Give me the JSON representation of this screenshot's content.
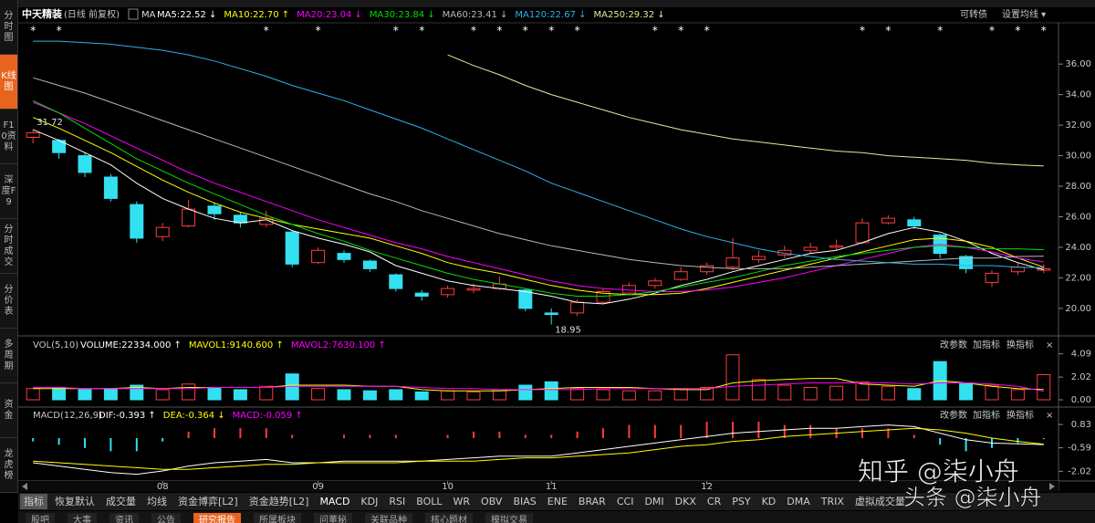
{
  "app": {
    "sidebar": [
      "分时图",
      "K线图",
      "F10资料",
      "深度F9",
      "分时成交",
      "分价表",
      "多周期",
      "资金",
      "龙虎榜"
    ],
    "sidebar_active": 1,
    "top_right": [
      "可转债",
      "设置均线 ▾"
    ],
    "ma_button": "MA",
    "panel_tools": [
      "改参数",
      "加指标",
      "换指标",
      "×"
    ],
    "tabs": [
      "指标",
      "恢复默认",
      "成交量",
      "均线",
      "资金博弈[L2]",
      "资金趋势[L2]",
      "MACD",
      "KDJ",
      "RSI",
      "BOLL",
      "WR",
      "OBV",
      "BIAS",
      "ENE",
      "BRAR",
      "CCI",
      "DMI",
      "DKX",
      "CR",
      "PSY",
      "KD",
      "DMA",
      "TRIX",
      "虚拟成交量"
    ],
    "tabs_active": 0,
    "bottom_tabs": [
      "股吧",
      "大事",
      "资讯",
      "公告",
      "研究报告",
      "所属板块",
      "问董秘",
      "关联品种",
      "核心题材",
      "模拟交易"
    ],
    "bottom_tabs_active": 4,
    "watermarks": [
      "知乎 @柒小舟",
      "头条 @柒小舟"
    ]
  },
  "chart_data": [
    {
      "type": "candlestick",
      "title": "中天精装",
      "subtitle": "(日线 前复权)",
      "categories": [
        null,
        null,
        null,
        null,
        null,
        "08",
        null,
        null,
        null,
        null,
        null,
        "09",
        null,
        null,
        null,
        null,
        "10",
        null,
        null,
        null,
        "11",
        null,
        null,
        null,
        null,
        null,
        "12",
        null,
        null,
        null,
        null,
        null,
        null,
        null,
        null,
        null,
        null,
        null,
        null,
        null
      ],
      "candles": {
        "open": [
          31.2,
          31.0,
          30.0,
          28.6,
          26.8,
          24.7,
          25.4,
          26.7,
          26.1,
          25.5,
          25.0,
          23.0,
          23.6,
          23.1,
          22.2,
          21.0,
          20.9,
          21.2,
          21.3,
          21.2,
          19.7,
          19.7,
          20.4,
          21.0,
          21.5,
          21.9,
          22.4,
          22.7,
          23.2,
          23.5,
          23.8,
          24.0,
          24.3,
          25.6,
          25.8,
          24.8,
          23.4,
          21.7,
          22.4,
          22.5
        ],
        "high": [
          31.72,
          31.1,
          30.2,
          28.8,
          27.0,
          25.6,
          27.1,
          26.9,
          26.3,
          26.4,
          25.1,
          24.0,
          23.8,
          23.2,
          22.3,
          21.2,
          21.5,
          21.6,
          22.1,
          21.3,
          20.0,
          20.6,
          21.3,
          21.7,
          22.0,
          22.7,
          23.0,
          24.6,
          23.8,
          24.1,
          24.3,
          24.5,
          25.9,
          26.1,
          26.0,
          24.9,
          23.5,
          22.5,
          23.0,
          22.9
        ],
        "low": [
          30.8,
          29.8,
          28.6,
          27.0,
          24.3,
          24.4,
          25.3,
          25.8,
          25.3,
          25.3,
          22.7,
          22.9,
          23.0,
          22.4,
          21.1,
          20.5,
          20.7,
          21.0,
          21.2,
          19.8,
          18.95,
          19.5,
          20.3,
          20.9,
          21.3,
          21.8,
          22.2,
          22.5,
          23.0,
          23.3,
          23.6,
          23.8,
          24.2,
          25.5,
          25.2,
          23.3,
          22.3,
          21.4,
          22.2,
          22.3
        ],
        "close": [
          31.5,
          30.2,
          28.9,
          27.2,
          24.6,
          25.3,
          26.5,
          26.2,
          25.6,
          25.9,
          22.9,
          23.8,
          23.2,
          22.6,
          21.3,
          20.8,
          21.3,
          21.3,
          21.6,
          20.0,
          19.6,
          20.4,
          21.1,
          21.5,
          21.8,
          22.4,
          22.8,
          23.3,
          23.4,
          23.8,
          24.0,
          24.1,
          25.6,
          25.9,
          25.4,
          23.6,
          22.6,
          22.3,
          22.7,
          22.6
        ],
        "up_color": "#ff3c3c",
        "down_color": "#33e0f0"
      },
      "series": [
        {
          "name": "MA5:22.52 ↓",
          "color": "#ffffff",
          "values": [
            31.7,
            31.0,
            30.2,
            29.4,
            28.2,
            27.2,
            26.5,
            25.9,
            25.6,
            25.8,
            25.1,
            24.6,
            24.2,
            23.7,
            22.8,
            22.3,
            21.8,
            21.5,
            21.3,
            21.1,
            20.8,
            20.4,
            20.3,
            20.6,
            21.0,
            21.5,
            21.9,
            22.4,
            22.8,
            23.2,
            23.6,
            23.8,
            24.3,
            24.9,
            25.3,
            25.0,
            24.4,
            23.6,
            23.0,
            22.52
          ]
        },
        {
          "name": "MA10:22.70 ↑",
          "color": "#ffff00",
          "values": [
            32.5,
            31.8,
            31.0,
            30.2,
            29.3,
            28.4,
            27.6,
            26.9,
            26.3,
            25.9,
            25.5,
            25.2,
            24.9,
            24.6,
            24.1,
            23.6,
            23.0,
            22.6,
            22.3,
            21.9,
            21.5,
            21.2,
            21.0,
            20.9,
            20.9,
            21.0,
            21.3,
            21.7,
            22.1,
            22.5,
            22.9,
            23.3,
            23.7,
            24.1,
            24.5,
            24.6,
            24.4,
            24.0,
            23.3,
            22.7
          ]
        },
        {
          "name": "MA20:23.04 ↓",
          "color": "#ff00ff",
          "values": [
            33.5,
            32.8,
            32.1,
            31.3,
            30.5,
            29.7,
            28.9,
            28.2,
            27.6,
            27.0,
            26.4,
            25.8,
            25.3,
            24.8,
            24.3,
            23.9,
            23.4,
            23.0,
            22.6,
            22.2,
            21.8,
            21.5,
            21.3,
            21.2,
            21.1,
            21.1,
            21.2,
            21.4,
            21.7,
            22.0,
            22.4,
            22.8,
            23.2,
            23.6,
            24.0,
            24.2,
            24.0,
            23.7,
            23.3,
            23.04
          ]
        },
        {
          "name": "MA30:23.84 ↓",
          "color": "#00e000",
          "values": [
            33.6,
            32.8,
            31.8,
            30.8,
            29.8,
            29.0,
            28.2,
            27.5,
            26.8,
            26.1,
            25.5,
            24.9,
            24.4,
            23.8,
            23.3,
            22.8,
            22.3,
            21.9,
            21.6,
            21.3,
            21.0,
            20.8,
            20.8,
            20.9,
            21.1,
            21.4,
            21.7,
            22.0,
            22.4,
            22.8,
            23.1,
            23.4,
            23.6,
            23.8,
            24.0,
            24.1,
            24.0,
            23.9,
            23.9,
            23.84
          ]
        },
        {
          "name": "MA60:23.41 ↓",
          "color": "#b8b8b8",
          "values": [
            35.1,
            34.6,
            34.1,
            33.5,
            32.9,
            32.3,
            31.7,
            31.1,
            30.5,
            29.9,
            29.3,
            28.7,
            28.1,
            27.5,
            27.0,
            26.4,
            25.9,
            25.4,
            24.9,
            24.5,
            24.1,
            23.8,
            23.5,
            23.2,
            23.0,
            22.8,
            22.7,
            22.6,
            22.6,
            22.6,
            22.7,
            22.8,
            22.9,
            23.0,
            23.1,
            23.2,
            23.3,
            23.3,
            23.4,
            23.41
          ]
        },
        {
          "name": "MA120:22.67 ↓",
          "color": "#30b0e8",
          "values": [
            37.5,
            37.5,
            37.4,
            37.3,
            37.1,
            36.9,
            36.6,
            36.2,
            35.7,
            35.2,
            34.6,
            34.1,
            33.6,
            33.0,
            32.4,
            31.8,
            31.1,
            30.4,
            29.7,
            29.0,
            28.2,
            27.6,
            27.0,
            26.4,
            25.8,
            25.2,
            24.7,
            24.3,
            23.9,
            23.6,
            23.4,
            23.2,
            23.1,
            23.0,
            22.9,
            22.9,
            22.8,
            22.8,
            22.7,
            22.67
          ]
        },
        {
          "name": "MA250:29.32 ↓",
          "color": "#e8e69a",
          "values": [
            null,
            null,
            null,
            null,
            null,
            null,
            null,
            null,
            null,
            null,
            null,
            null,
            null,
            null,
            null,
            null,
            36.6,
            35.9,
            35.3,
            34.6,
            34.0,
            33.5,
            33.0,
            32.5,
            32.1,
            31.7,
            31.4,
            31.1,
            30.9,
            30.7,
            30.5,
            30.3,
            30.2,
            30.0,
            29.9,
            29.8,
            29.7,
            29.5,
            29.4,
            29.32
          ]
        }
      ],
      "ylim": [
        18.2,
        38.7
      ],
      "yticks": [
        {
          "value": 20,
          "label": "20.00"
        },
        {
          "value": 22,
          "label": "22.00"
        },
        {
          "value": 24,
          "label": "24.00"
        },
        {
          "value": 26,
          "label": "26.00"
        },
        {
          "value": 28,
          "label": "28.00"
        },
        {
          "value": 30,
          "label": "30.00"
        },
        {
          "value": 32,
          "label": "32.00"
        },
        {
          "value": 34,
          "label": "34.00"
        },
        {
          "value": 36,
          "label": "36.00"
        }
      ],
      "grid": false,
      "max_label": 31.72,
      "min_label": 18.95,
      "events": {
        "symbol": "*",
        "at": [
          0,
          1,
          9,
          11,
          14,
          15,
          17,
          18,
          19,
          20,
          21,
          24,
          25,
          26,
          32,
          33,
          35,
          37,
          38,
          39
        ]
      }
    },
    {
      "type": "bar",
      "title": "VOL(5,10)",
      "values": [
        1.0,
        1.1,
        0.9,
        1.0,
        1.3,
        0.9,
        1.4,
        1.1,
        0.9,
        1.2,
        2.3,
        1.0,
        0.9,
        0.8,
        0.9,
        0.7,
        0.8,
        0.7,
        0.9,
        1.3,
        1.6,
        1.0,
        0.9,
        0.8,
        0.8,
        1.0,
        1.1,
        4.0,
        1.8,
        1.3,
        1.1,
        1.2,
        1.6,
        1.2,
        1.0,
        3.4,
        1.5,
        1.3,
        0.9,
        2.2334
      ],
      "value_label": "VOLUME:22334.000 ↑",
      "value_label_color": "#ffffff",
      "series": [
        {
          "name": "MAVOL1:9140.600 ↑",
          "color": "#ffff00",
          "values": [
            1.0,
            1.0,
            1.0,
            1.0,
            1.1,
            1.0,
            1.1,
            1.1,
            1.1,
            1.1,
            1.3,
            1.3,
            1.3,
            1.2,
            1.2,
            0.9,
            0.8,
            0.8,
            0.8,
            0.9,
            1.0,
            1.1,
            1.1,
            1.1,
            1.0,
            0.9,
            0.9,
            1.5,
            1.7,
            1.8,
            1.9,
            1.9,
            1.4,
            1.3,
            1.2,
            1.7,
            1.5,
            1.2,
            1.0,
            0.914
          ]
        },
        {
          "name": "MAVOL2:7630.100 ↑",
          "color": "#ff00ff",
          "values": [
            1.1,
            1.1,
            1.0,
            1.0,
            1.0,
            1.0,
            1.0,
            1.1,
            1.1,
            1.1,
            1.2,
            1.2,
            1.2,
            1.2,
            1.2,
            1.1,
            1.0,
            1.0,
            0.9,
            0.9,
            0.9,
            0.9,
            1.0,
            1.0,
            1.0,
            1.0,
            1.0,
            1.2,
            1.3,
            1.4,
            1.5,
            1.5,
            1.5,
            1.5,
            1.4,
            1.5,
            1.5,
            1.4,
            1.2,
            0.763
          ]
        }
      ],
      "ylim": [
        0,
        5.2
      ],
      "yticks": [
        {
          "value": 0,
          "label": "0.00"
        },
        2.02,
        4.09
      ]
    },
    {
      "type": "macd",
      "title": "MACD(12,26,9)",
      "values": [
        -0.2,
        -0.4,
        -0.6,
        -0.8,
        -0.8,
        -0.2,
        0.4,
        0.6,
        0.6,
        0.6,
        0.2,
        0,
        0.2,
        0.2,
        0.2,
        0,
        0.2,
        0.4,
        0.4,
        0.2,
        0.2,
        0.4,
        0.6,
        0.8,
        0.8,
        0.8,
        1.0,
        1.0,
        1.0,
        0.8,
        0.8,
        0.6,
        0.6,
        0.6,
        0.2,
        -0.4,
        -0.8,
        -0.6,
        -0.3,
        -0.059
      ],
      "value_label": "MACD:-0.059 ↑",
      "value_label_color": "#ff00ff",
      "up_color": "#ff3c3c",
      "down_color": "#33e0f0",
      "series": [
        {
          "name": "DIF:-0.393 ↑",
          "color": "#ffffff",
          "values": [
            -1.5,
            -1.7,
            -1.9,
            -2.1,
            -2.2,
            -2.0,
            -1.7,
            -1.5,
            -1.4,
            -1.3,
            -1.5,
            -1.5,
            -1.4,
            -1.4,
            -1.4,
            -1.4,
            -1.3,
            -1.2,
            -1.1,
            -1.1,
            -1.1,
            -0.9,
            -0.7,
            -0.5,
            -0.3,
            -0.1,
            0.1,
            0.3,
            0.4,
            0.5,
            0.6,
            0.6,
            0.7,
            0.8,
            0.7,
            0.3,
            -0.1,
            -0.3,
            -0.35,
            -0.393
          ]
        },
        {
          "name": "DEA:-0.364 ↓",
          "color": "#ffff00",
          "values": [
            -1.4,
            -1.5,
            -1.6,
            -1.7,
            -1.8,
            -1.9,
            -1.9,
            -1.8,
            -1.7,
            -1.6,
            -1.6,
            -1.5,
            -1.5,
            -1.5,
            -1.5,
            -1.4,
            -1.4,
            -1.4,
            -1.3,
            -1.2,
            -1.2,
            -1.1,
            -1.0,
            -0.9,
            -0.7,
            -0.5,
            -0.4,
            -0.2,
            -0.1,
            0.1,
            0.2,
            0.3,
            0.4,
            0.5,
            0.6,
            0.5,
            0.3,
            0.0,
            -0.2,
            -0.364
          ]
        }
      ],
      "ylim": [
        -2.5,
        1.5
      ],
      "yticks": [
        0.83,
        -0.59,
        -2.02
      ]
    }
  ]
}
